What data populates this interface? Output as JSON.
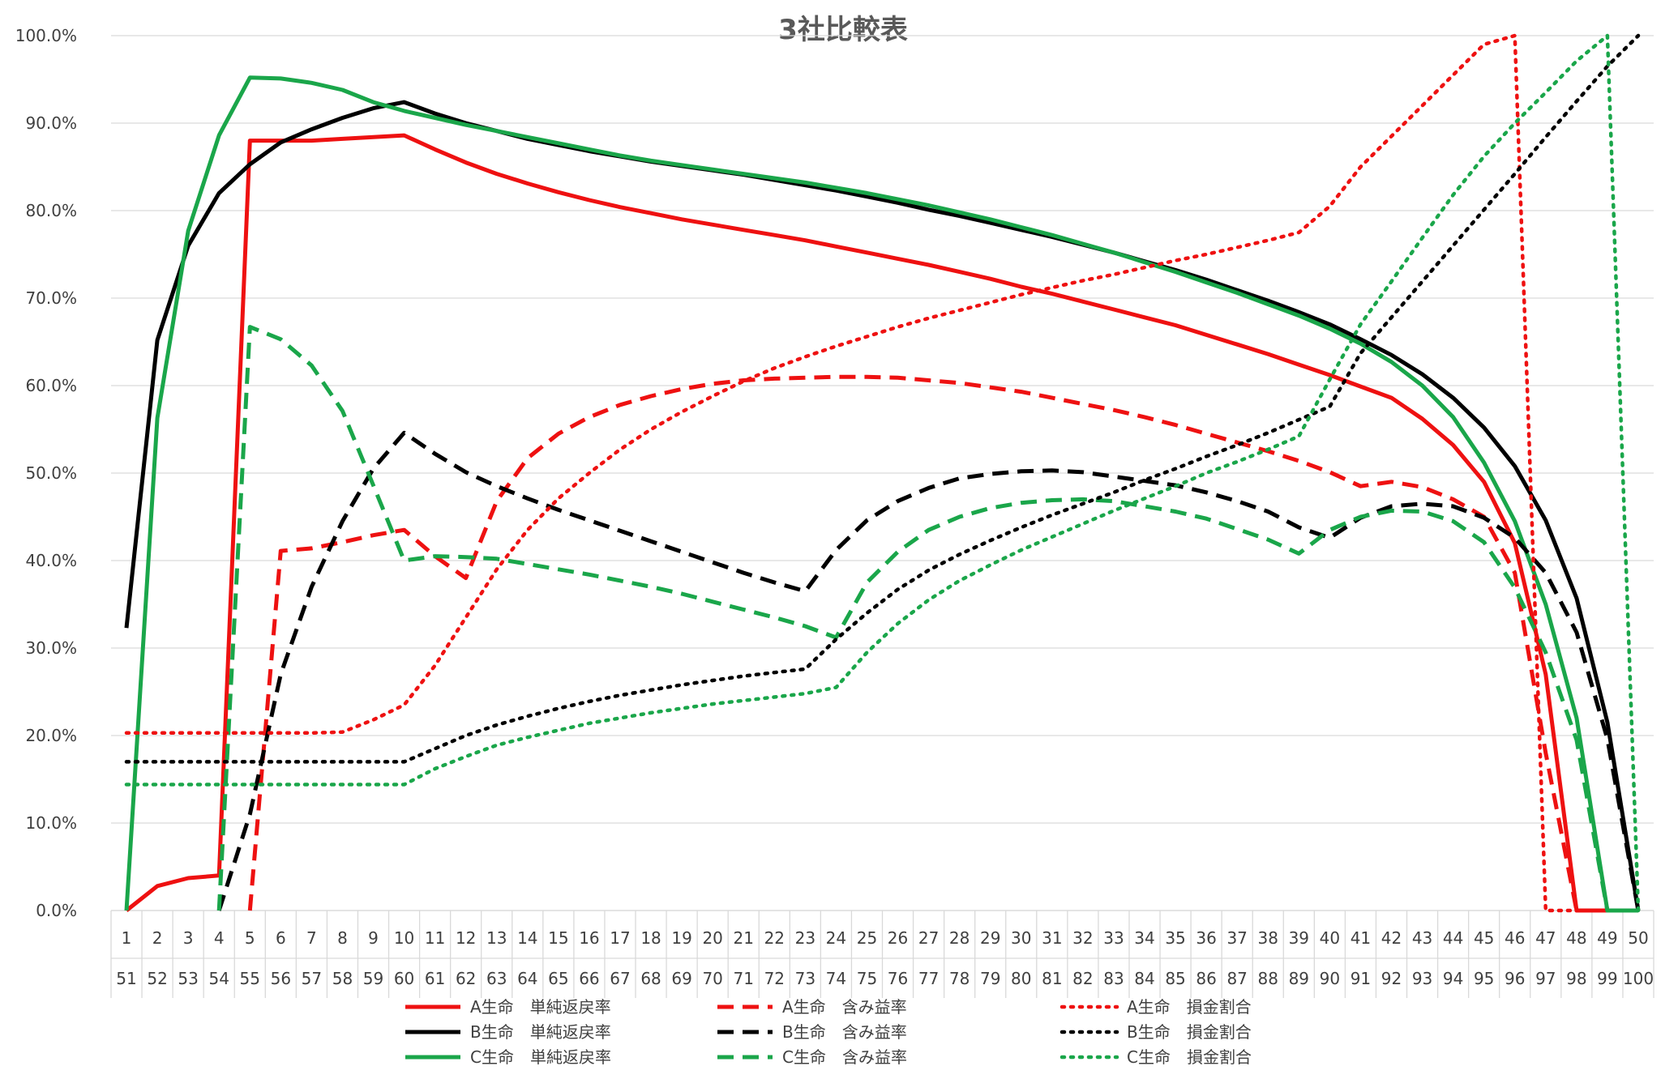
{
  "chart_data": {
    "type": "line",
    "title": "3社比較表",
    "xlabel": "",
    "ylabel": "",
    "ylim": [
      0,
      100
    ],
    "y_ticks": [
      "0.0%",
      "10.0%",
      "20.0%",
      "30.0%",
      "40.0%",
      "50.0%",
      "60.0%",
      "70.0%",
      "80.0%",
      "90.0%",
      "100.0%"
    ],
    "categories_row1": [
      "1",
      "2",
      "3",
      "4",
      "5",
      "6",
      "7",
      "8",
      "9",
      "10",
      "11",
      "12",
      "13",
      "14",
      "15",
      "16",
      "17",
      "18",
      "19",
      "20",
      "21",
      "22",
      "23",
      "24",
      "25",
      "26",
      "27",
      "28",
      "29",
      "30",
      "31",
      "32",
      "33",
      "34",
      "35",
      "36",
      "37",
      "38",
      "39",
      "40",
      "41",
      "42",
      "43",
      "44",
      "45",
      "46",
      "47",
      "48",
      "49",
      "50"
    ],
    "categories_row2": [
      "51",
      "52",
      "53",
      "54",
      "55",
      "56",
      "57",
      "58",
      "59",
      "60",
      "61",
      "62",
      "63",
      "64",
      "65",
      "66",
      "67",
      "68",
      "69",
      "70",
      "71",
      "72",
      "73",
      "74",
      "75",
      "76",
      "77",
      "78",
      "79",
      "80",
      "81",
      "82",
      "83",
      "84",
      "85",
      "86",
      "87",
      "88",
      "89",
      "90",
      "91",
      "92",
      "93",
      "94",
      "95",
      "96",
      "97",
      "98",
      "99",
      "100"
    ],
    "grid": "horizontal",
    "legend_position": "bottom",
    "series": [
      {
        "name": "A生命　単純返戻率",
        "color": "#ee1111",
        "dash": "solid",
        "values": [
          0,
          2.8,
          3.7,
          4.0,
          88,
          88,
          88,
          88.2,
          88.4,
          88.6,
          87,
          85.5,
          84.2,
          83.1,
          82.1,
          81.2,
          80.4,
          79.7,
          79.0,
          78.4,
          77.8,
          77.2,
          76.6,
          75.9,
          75.2,
          74.5,
          73.8,
          73.0,
          72.2,
          71.3,
          70.5,
          69.6,
          68.7,
          67.8,
          66.9,
          65.8,
          64.7,
          63.6,
          62.4,
          61.2,
          59.9,
          58.6,
          56.2,
          53.2,
          49,
          42,
          27,
          0,
          0,
          0
        ]
      },
      {
        "name": "B生命　単純返戻率",
        "color": "#000000",
        "dash": "solid",
        "values": [
          32.3,
          65.2,
          76,
          82,
          85.3,
          87.8,
          89.3,
          90.6,
          91.7,
          92.4,
          91.1,
          90.0,
          89.1,
          88.2,
          87.5,
          86.8,
          86.2,
          85.6,
          85.1,
          84.6,
          84.1,
          83.5,
          82.9,
          82.3,
          81.6,
          80.9,
          80.1,
          79.4,
          78.6,
          77.8,
          77.0,
          76.1,
          75.2,
          74.2,
          73.2,
          72.1,
          70.9,
          69.7,
          68.4,
          67.0,
          65.3,
          63.5,
          61.3,
          58.6,
          55.2,
          50.8,
          44.6,
          35.7,
          21.5,
          0
        ]
      },
      {
        "name": "C生命　単純返戻率",
        "color": "#1aa64a",
        "dash": "solid",
        "values": [
          0,
          56.3,
          77.7,
          88.6,
          95.2,
          95.1,
          94.6,
          93.8,
          92.4,
          91.4,
          90.6,
          89.8,
          89.1,
          88.4,
          87.7,
          87.0,
          86.3,
          85.7,
          85.2,
          84.7,
          84.2,
          83.7,
          83.2,
          82.6,
          82.0,
          81.3,
          80.6,
          79.8,
          79.0,
          78.1,
          77.2,
          76.2,
          75.2,
          74.1,
          73.0,
          71.8,
          70.6,
          69.3,
          68.0,
          66.5,
          64.8,
          62.7,
          60.0,
          56.4,
          51.2,
          44.5,
          35.0,
          22.0,
          0,
          0
        ]
      },
      {
        "name": "A生命　含み益率",
        "color": "#ee1111",
        "dash": "dash",
        "values": [
          null,
          null,
          null,
          null,
          0,
          41.1,
          41.4,
          42.1,
          42.9,
          43.5,
          40.5,
          38,
          46.8,
          51.7,
          54.5,
          56.4,
          57.8,
          58.8,
          59.6,
          60.2,
          60.6,
          60.8,
          60.9,
          61.0,
          61.0,
          60.9,
          60.6,
          60.3,
          59.8,
          59.3,
          58.6,
          57.9,
          57.2,
          56.4,
          55.5,
          54.5,
          53.5,
          52.5,
          51.4,
          50.1,
          48.5,
          49.0,
          48.4,
          47.0,
          45.0,
          38.6,
          18,
          0,
          null,
          null
        ]
      },
      {
        "name": "B生命　含み益率",
        "color": "#000000",
        "dash": "dash",
        "values": [
          null,
          null,
          null,
          0,
          11,
          27,
          37,
          44.5,
          50.5,
          54.6,
          52.2,
          50.1,
          48.5,
          47.1,
          45.8,
          44.6,
          43.4,
          42.2,
          41.0,
          39.8,
          38.6,
          37.5,
          36.5,
          41.2,
          44.6,
          46.8,
          48.3,
          49.4,
          49.9,
          50.2,
          50.3,
          50.1,
          49.6,
          49.1,
          48.6,
          47.8,
          46.8,
          45.6,
          43.8,
          42.6,
          44.9,
          46.2,
          46.5,
          46.2,
          44.9,
          42.6,
          38.6,
          31.8,
          19.6,
          0
        ]
      },
      {
        "name": "C生命　含み益率",
        "color": "#1aa64a",
        "dash": "dash",
        "values": [
          null,
          null,
          null,
          0,
          66.7,
          65.3,
          62.3,
          57.1,
          48.6,
          40.0,
          40.5,
          40.4,
          40.2,
          39.6,
          39.0,
          38.4,
          37.7,
          37.0,
          36.2,
          35.3,
          34.4,
          33.5,
          32.5,
          31.2,
          37.5,
          41.0,
          43.5,
          45.0,
          46.0,
          46.6,
          46.9,
          47.0,
          46.8,
          46.2,
          45.6,
          44.8,
          43.6,
          42.4,
          40.8,
          43.5,
          45.0,
          45.7,
          45.6,
          44.5,
          42.1,
          36.9,
          29.5,
          19.5,
          0,
          0
        ]
      },
      {
        "name": "A生命　損金割合",
        "color": "#ee1111",
        "dash": "dot",
        "values": [
          20.3,
          20.3,
          20.3,
          20.3,
          20.3,
          20.3,
          20.3,
          20.4,
          21.8,
          23.5,
          28.0,
          33.5,
          39.0,
          43.5,
          47.1,
          50.0,
          52.7,
          55.0,
          57.0,
          58.8,
          60.5,
          62.0,
          63.3,
          64.5,
          65.6,
          66.7,
          67.7,
          68.6,
          69.5,
          70.4,
          71.2,
          72.0,
          72.7,
          73.5,
          74.3,
          75.0,
          75.8,
          76.6,
          77.5,
          80.5,
          85.0,
          88.5,
          92.0,
          95.5,
          99.0,
          100,
          0,
          0,
          null,
          null
        ]
      },
      {
        "name": "B生命　損金割合",
        "color": "#000000",
        "dash": "dot",
        "values": [
          17,
          17,
          17,
          17,
          17,
          17,
          17,
          17,
          17,
          17,
          18.5,
          20.0,
          21.2,
          22.2,
          23.1,
          23.9,
          24.6,
          25.2,
          25.8,
          26.3,
          26.8,
          27.2,
          27.6,
          31.0,
          34.0,
          36.7,
          38.9,
          40.7,
          42.3,
          43.8,
          45.2,
          46.5,
          47.8,
          49.2,
          50.5,
          51.9,
          53.2,
          54.6,
          56.1,
          57.6,
          63.7,
          67.8,
          71.9,
          76.0,
          80.1,
          84.2,
          88.4,
          92.5,
          96.5,
          100
        ]
      },
      {
        "name": "C生命　損金割合",
        "color": "#1aa64a",
        "dash": "dot",
        "values": [
          14.4,
          14.4,
          14.4,
          14.4,
          14.4,
          14.4,
          14.4,
          14.4,
          14.4,
          14.4,
          16.2,
          17.6,
          18.9,
          19.8,
          20.6,
          21.4,
          22.0,
          22.6,
          23.1,
          23.6,
          24.0,
          24.4,
          24.8,
          25.5,
          29.5,
          32.8,
          35.5,
          37.7,
          39.5,
          41.2,
          42.7,
          44.2,
          45.7,
          47.1,
          48.5,
          50.0,
          51.3,
          52.7,
          54.2,
          60.7,
          67.0,
          71.9,
          76.9,
          81.8,
          86.2,
          90.0,
          93.5,
          97.1,
          100,
          0
        ]
      }
    ]
  }
}
